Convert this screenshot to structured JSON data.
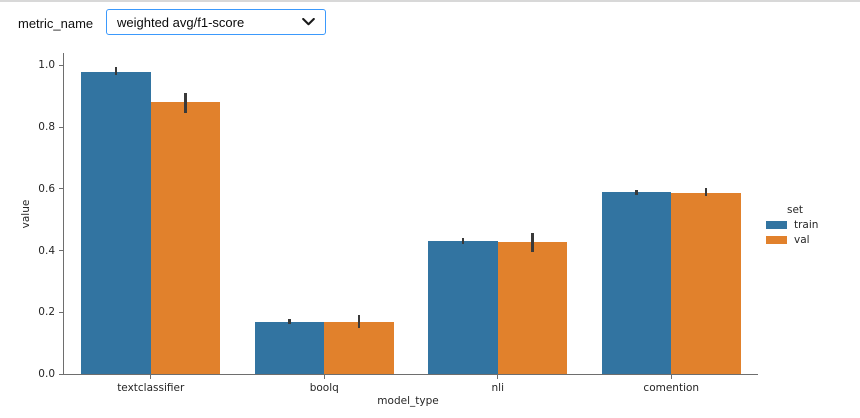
{
  "header": {
    "label": "metric_name",
    "select_value": "weighted avg/f1-score"
  },
  "colors": {
    "accent_blue": "#3b99fc",
    "bar_train": "#3274a1",
    "bar_val": "#e1812c",
    "error_bar": "#3a3a3a",
    "spine": "#6e6e6e",
    "tick_text": "#262626",
    "top_divider": "#d8d8d8"
  },
  "chart_data": {
    "type": "bar",
    "title": "",
    "xlabel": "model_type",
    "ylabel": "value",
    "categories": [
      "textclassifier",
      "boolq",
      "nli",
      "comention"
    ],
    "series": [
      {
        "name": "train",
        "color": "#3274a1",
        "values": [
          0.98,
          0.17,
          0.43,
          0.59
        ],
        "ci_low": [
          0.968,
          0.162,
          0.42,
          0.581
        ],
        "ci_high": [
          0.995,
          0.178,
          0.441,
          0.595
        ]
      },
      {
        "name": "val",
        "color": "#e1812c",
        "values": [
          0.88,
          0.17,
          0.428,
          0.588
        ],
        "ci_low": [
          0.845,
          0.148,
          0.396,
          0.576
        ],
        "ci_high": [
          0.912,
          0.19,
          0.458,
          0.601
        ]
      }
    ],
    "yticks": [
      0.0,
      0.2,
      0.4,
      0.6,
      0.8,
      1.0
    ],
    "ylim": [
      0,
      1.04
    ],
    "grid": false,
    "legend": {
      "title": "set",
      "position": "right",
      "entries": [
        "train",
        "val"
      ]
    }
  }
}
